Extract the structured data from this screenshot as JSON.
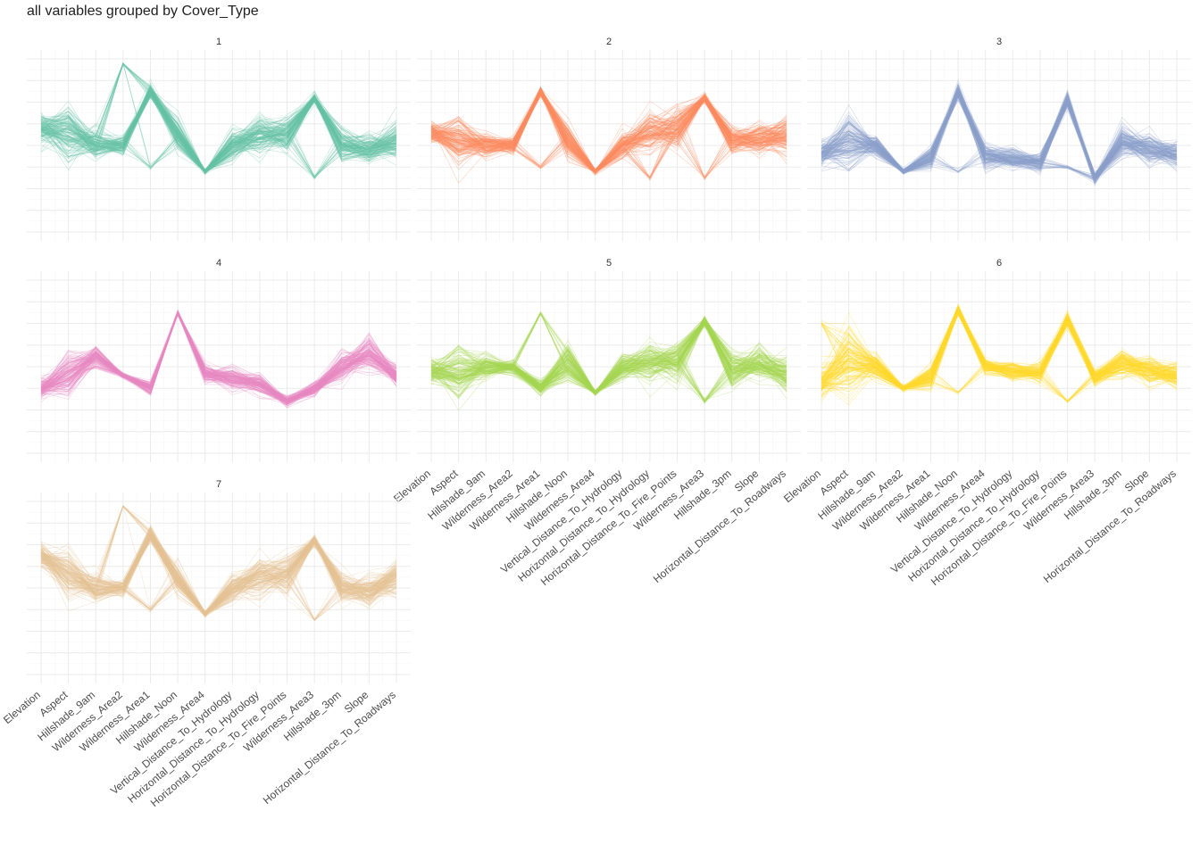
{
  "title": "all variables grouped by Cover_Type",
  "palette": {
    "1": "#66C2A5",
    "2": "#FC8D62",
    "3": "#8DA0CB",
    "4": "#E78AC3",
    "5": "#A6D854",
    "6": "#FFD92F",
    "7": "#E5C494"
  },
  "chart_data": {
    "type": "line",
    "subtype": "parallel-coordinates",
    "grouped_by": "Cover_Type",
    "facets": [
      "1",
      "2",
      "3",
      "4",
      "5",
      "6",
      "7"
    ],
    "variables": [
      "Elevation",
      "Aspect",
      "Hillshade_9am",
      "Wilderness_Area2",
      "Wilderness_Area1",
      "Hillshade_Noon",
      "Wilderness_Area4",
      "Vertical_Distance_To_Hydrology",
      "Horizontal_Distance_To_Hydrology",
      "Horizontal_Distance_To_Fire_Points",
      "Wilderness_Area3",
      "Hillshade_3pm",
      "Slope",
      "Horizontal_Distance_To_Roadways"
    ],
    "ylim": [
      -4,
      4
    ],
    "grid": true,
    "legend": "none",
    "profiles": {
      "1": {
        "center": [
          0.8,
          0.6,
          0.0,
          0.0,
          2.5,
          0.5,
          -1.2,
          0.0,
          0.5,
          0.5,
          2.2,
          0.0,
          -0.2,
          0.2
        ],
        "spread": [
          0.6,
          1.0,
          0.6,
          0.4,
          0.3,
          0.6,
          0.1,
          0.6,
          0.8,
          0.8,
          0.2,
          0.6,
          0.6,
          0.8
        ],
        "alt": [
          [
            4,
            -1.0
          ],
          [
            10,
            -1.5
          ],
          [
            3,
            3.8
          ]
        ]
      },
      "2": {
        "center": [
          0.6,
          0.2,
          0.0,
          0.0,
          2.5,
          0.2,
          -1.2,
          0.0,
          0.6,
          0.8,
          2.2,
          0.2,
          0.2,
          0.4
        ],
        "spread": [
          0.4,
          1.0,
          0.5,
          0.3,
          0.2,
          0.6,
          0.1,
          0.5,
          0.8,
          0.9,
          0.2,
          0.6,
          0.6,
          0.8
        ],
        "alt": [
          [
            4,
            -1.0
          ],
          [
            10,
            -1.5
          ],
          [
            8,
            -1.5
          ]
        ]
      },
      "3": {
        "center": [
          -0.4,
          0.2,
          0.0,
          -1.2,
          -0.6,
          2.5,
          -0.5,
          -0.6,
          -0.8,
          2.1,
          -1.5,
          0.2,
          -0.2,
          -0.4
        ],
        "spread": [
          0.5,
          1.2,
          0.4,
          0.1,
          0.4,
          0.3,
          0.5,
          0.4,
          0.4,
          0.3,
          0.2,
          0.6,
          0.6,
          0.5
        ],
        "alt": [
          [
            5,
            -1.2
          ],
          [
            9,
            -1.0
          ]
        ]
      },
      "4": {
        "center": [
          -1.0,
          -0.4,
          0.5,
          -0.4,
          -1.0,
          2.5,
          -0.3,
          -0.6,
          -0.8,
          -1.6,
          -1.0,
          0.0,
          0.6,
          -0.4
        ],
        "spread": [
          0.4,
          0.9,
          0.4,
          0.1,
          0.3,
          0.1,
          0.4,
          0.5,
          0.4,
          0.2,
          0.3,
          0.6,
          0.7,
          0.4
        ],
        "alt": [
          [
            2,
            0.0
          ]
        ]
      },
      "5": {
        "center": [
          -0.2,
          -0.3,
          0.0,
          0.0,
          -1.0,
          0.2,
          -1.2,
          0.0,
          0.2,
          0.3,
          2.1,
          -0.2,
          0.2,
          -0.4
        ],
        "spread": [
          0.5,
          1.1,
          0.5,
          0.3,
          0.3,
          0.8,
          0.1,
          0.5,
          0.7,
          0.8,
          0.2,
          0.7,
          0.7,
          0.7
        ],
        "alt": [
          [
            4,
            2.5
          ],
          [
            10,
            -1.6
          ]
        ]
      },
      "6": {
        "center": [
          -0.7,
          0.3,
          0.0,
          -1.0,
          -0.5,
          2.6,
          0.0,
          -0.2,
          -0.3,
          2.2,
          -0.5,
          0.2,
          -0.2,
          -0.4
        ],
        "spread": [
          0.6,
          1.5,
          0.5,
          0.1,
          0.5,
          0.2,
          0.3,
          0.4,
          0.4,
          0.3,
          0.3,
          0.6,
          0.6,
          0.5
        ],
        "alt": [
          [
            5,
            -1.2
          ],
          [
            9,
            -1.6
          ],
          [
            0,
            2.0
          ]
        ]
      },
      "7": {
        "center": [
          1.5,
          0.6,
          0.0,
          0.0,
          2.5,
          0.4,
          -1.2,
          0.0,
          0.5,
          0.6,
          2.2,
          0.0,
          -0.2,
          0.5
        ],
        "spread": [
          0.5,
          1.0,
          0.6,
          0.3,
          0.3,
          0.6,
          0.1,
          0.6,
          0.8,
          0.8,
          0.2,
          0.6,
          0.6,
          0.8
        ],
        "alt": [
          [
            4,
            -1.0
          ],
          [
            10,
            -1.5
          ],
          [
            3,
            3.8
          ]
        ]
      }
    }
  }
}
